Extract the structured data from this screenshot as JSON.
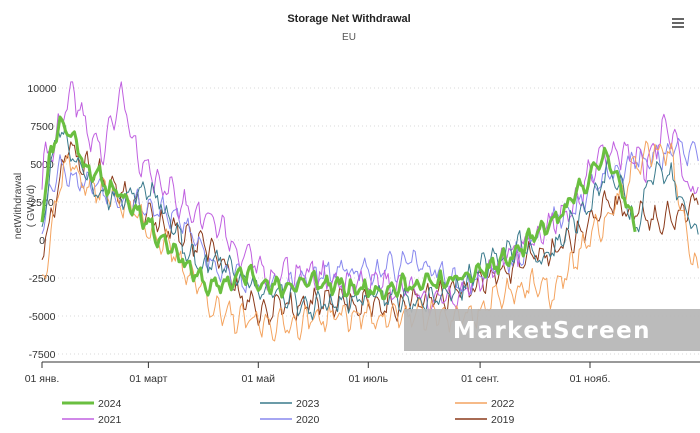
{
  "chart_data": {
    "type": "line",
    "title": "Storage Net Withdrawal",
    "subtitle": "EU",
    "ylabel": "netWithdrawal",
    "yunit": "( GWh/d)",
    "ylim": [
      -7500,
      10000
    ],
    "yticks": [
      10000,
      7500,
      5000,
      2500,
      0,
      -2500,
      -5000,
      -7500
    ],
    "ytick_labels": [
      "10000",
      "7500",
      "5000",
      "2500",
      "0",
      "-2500",
      "-5000",
      "-7500"
    ],
    "x_range": [
      "01 янв.",
      "31 дек."
    ],
    "xticks": [
      "01 янв.",
      "01 март",
      "01 май",
      "01 июль",
      "01 сент.",
      "01 нояб."
    ],
    "grid": true,
    "legend_position": "bottom",
    "series": [
      {
        "name": "2024",
        "color": "#6abf40",
        "width": 3,
        "seed": 11,
        "offset": 300,
        "noise": 900,
        "anchors": [
          [
            1,
            2000
          ],
          [
            5,
            5000
          ],
          [
            10,
            7500
          ],
          [
            15,
            7000
          ],
          [
            20,
            6000
          ],
          [
            25,
            4500
          ],
          [
            35,
            3500
          ],
          [
            45,
            2500
          ],
          [
            55,
            1500
          ],
          [
            65,
            0
          ],
          [
            75,
            -1000
          ],
          [
            85,
            -2500
          ],
          [
            95,
            -3500
          ],
          [
            105,
            -3000
          ],
          [
            115,
            -2500
          ],
          [
            130,
            -3500
          ],
          [
            150,
            -3000
          ],
          [
            170,
            -3500
          ],
          [
            190,
            -3500
          ],
          [
            210,
            -3200
          ],
          [
            230,
            -3000
          ],
          [
            245,
            -2300
          ],
          [
            260,
            -1500
          ],
          [
            275,
            0
          ],
          [
            290,
            1500
          ],
          [
            305,
            4000
          ],
          [
            315,
            5500
          ],
          [
            320,
            3500
          ],
          [
            325,
            2000
          ],
          [
            330,
            1000
          ]
        ]
      },
      {
        "name": "2023",
        "color": "#3a7a8c",
        "width": 1,
        "seed": 23,
        "offset": -300,
        "noise": 1200,
        "anchors": [
          [
            1,
            1500
          ],
          [
            10,
            8000
          ],
          [
            20,
            5500
          ],
          [
            30,
            3500
          ],
          [
            45,
            3000
          ],
          [
            60,
            4000
          ],
          [
            70,
            2000
          ],
          [
            80,
            -500
          ],
          [
            90,
            -1500
          ],
          [
            100,
            -1000
          ],
          [
            120,
            -3000
          ],
          [
            150,
            -4000
          ],
          [
            180,
            -3500
          ],
          [
            210,
            -3500
          ],
          [
            230,
            -3000
          ],
          [
            250,
            -1000
          ],
          [
            265,
            0
          ],
          [
            280,
            -1000
          ],
          [
            295,
            1500
          ],
          [
            305,
            2500
          ],
          [
            315,
            5000
          ],
          [
            325,
            3000
          ],
          [
            330,
            1000
          ],
          [
            335,
            3500
          ],
          [
            340,
            5000
          ],
          [
            350,
            4500
          ],
          [
            360,
            1500
          ],
          [
            365,
            500
          ]
        ]
      },
      {
        "name": "2022",
        "color": "#f4a460",
        "width": 1,
        "seed": 37,
        "offset": -500,
        "noise": 1300,
        "anchors": [
          [
            1,
            -2500
          ],
          [
            8,
            3000
          ],
          [
            15,
            6000
          ],
          [
            25,
            4000
          ],
          [
            40,
            3500
          ],
          [
            55,
            2000
          ],
          [
            70,
            0
          ],
          [
            85,
            -2000
          ],
          [
            100,
            -4500
          ],
          [
            120,
            -5000
          ],
          [
            140,
            -5000
          ],
          [
            160,
            -4500
          ],
          [
            180,
            -4500
          ],
          [
            200,
            -4500
          ],
          [
            220,
            -4500
          ],
          [
            240,
            -4500
          ],
          [
            255,
            -3000
          ],
          [
            270,
            -2500
          ],
          [
            285,
            -3000
          ],
          [
            300,
            0
          ],
          [
            315,
            2000
          ],
          [
            330,
            5500
          ],
          [
            340,
            6500
          ],
          [
            350,
            6000
          ],
          [
            360,
            -500
          ],
          [
            365,
            -1500
          ]
        ]
      },
      {
        "name": "2021",
        "color": "#c060e0",
        "width": 1,
        "seed": 41,
        "offset": 300,
        "noise": 1400,
        "anchors": [
          [
            1,
            4500
          ],
          [
            10,
            7000
          ],
          [
            18,
            9500
          ],
          [
            25,
            7000
          ],
          [
            35,
            5500
          ],
          [
            45,
            9500
          ],
          [
            50,
            7000
          ],
          [
            55,
            4500
          ],
          [
            65,
            3500
          ],
          [
            80,
            2000
          ],
          [
            95,
            1000
          ],
          [
            110,
            -1000
          ],
          [
            125,
            -2500
          ],
          [
            145,
            -2500
          ],
          [
            165,
            -3000
          ],
          [
            185,
            -3000
          ],
          [
            205,
            -3500
          ],
          [
            225,
            -4500
          ],
          [
            245,
            -2500
          ],
          [
            265,
            -1000
          ],
          [
            280,
            500
          ],
          [
            295,
            2000
          ],
          [
            310,
            5000
          ],
          [
            325,
            5500
          ],
          [
            335,
            4500
          ],
          [
            345,
            7000
          ],
          [
            352,
            6500
          ],
          [
            360,
            3000
          ],
          [
            365,
            4000
          ]
        ]
      },
      {
        "name": "2020",
        "color": "#8888ee",
        "width": 1,
        "seed": 53,
        "offset": 0,
        "noise": 1200,
        "anchors": [
          [
            1,
            1500
          ],
          [
            10,
            5000
          ],
          [
            20,
            4000
          ],
          [
            35,
            3500
          ],
          [
            50,
            2500
          ],
          [
            65,
            2000
          ],
          [
            80,
            1000
          ],
          [
            95,
            -1500
          ],
          [
            110,
            -2500
          ],
          [
            130,
            -3000
          ],
          [
            150,
            -2500
          ],
          [
            170,
            -2000
          ],
          [
            190,
            -2000
          ],
          [
            205,
            -1500
          ],
          [
            220,
            -2000
          ],
          [
            235,
            -3000
          ],
          [
            250,
            -2000
          ],
          [
            265,
            -1000
          ],
          [
            280,
            1000
          ],
          [
            295,
            2000
          ],
          [
            310,
            4000
          ],
          [
            325,
            5000
          ],
          [
            340,
            5500
          ],
          [
            352,
            6000
          ],
          [
            365,
            5500
          ]
        ]
      },
      {
        "name": "2019",
        "color": "#8b3a1a",
        "width": 1,
        "seed": 67,
        "offset": -200,
        "noise": 1300,
        "anchors": [
          [
            1,
            -500
          ],
          [
            8,
            3000
          ],
          [
            15,
            6500
          ],
          [
            25,
            5000
          ],
          [
            40,
            4000
          ],
          [
            55,
            2500
          ],
          [
            70,
            1000
          ],
          [
            85,
            0
          ],
          [
            100,
            -1000
          ],
          [
            110,
            -3500
          ],
          [
            120,
            -4500
          ],
          [
            140,
            -4000
          ],
          [
            160,
            -4000
          ],
          [
            180,
            -4000
          ],
          [
            200,
            -4000
          ],
          [
            220,
            -3500
          ],
          [
            240,
            -3000
          ],
          [
            255,
            -2000
          ],
          [
            270,
            -1000
          ],
          [
            285,
            -500
          ],
          [
            300,
            1000
          ],
          [
            315,
            2500
          ],
          [
            330,
            2000
          ],
          [
            345,
            1500
          ],
          [
            360,
            2500
          ],
          [
            365,
            3000
          ]
        ]
      }
    ]
  },
  "watermark": "MarketScreen",
  "menu_icon": "hamburger-menu-icon"
}
